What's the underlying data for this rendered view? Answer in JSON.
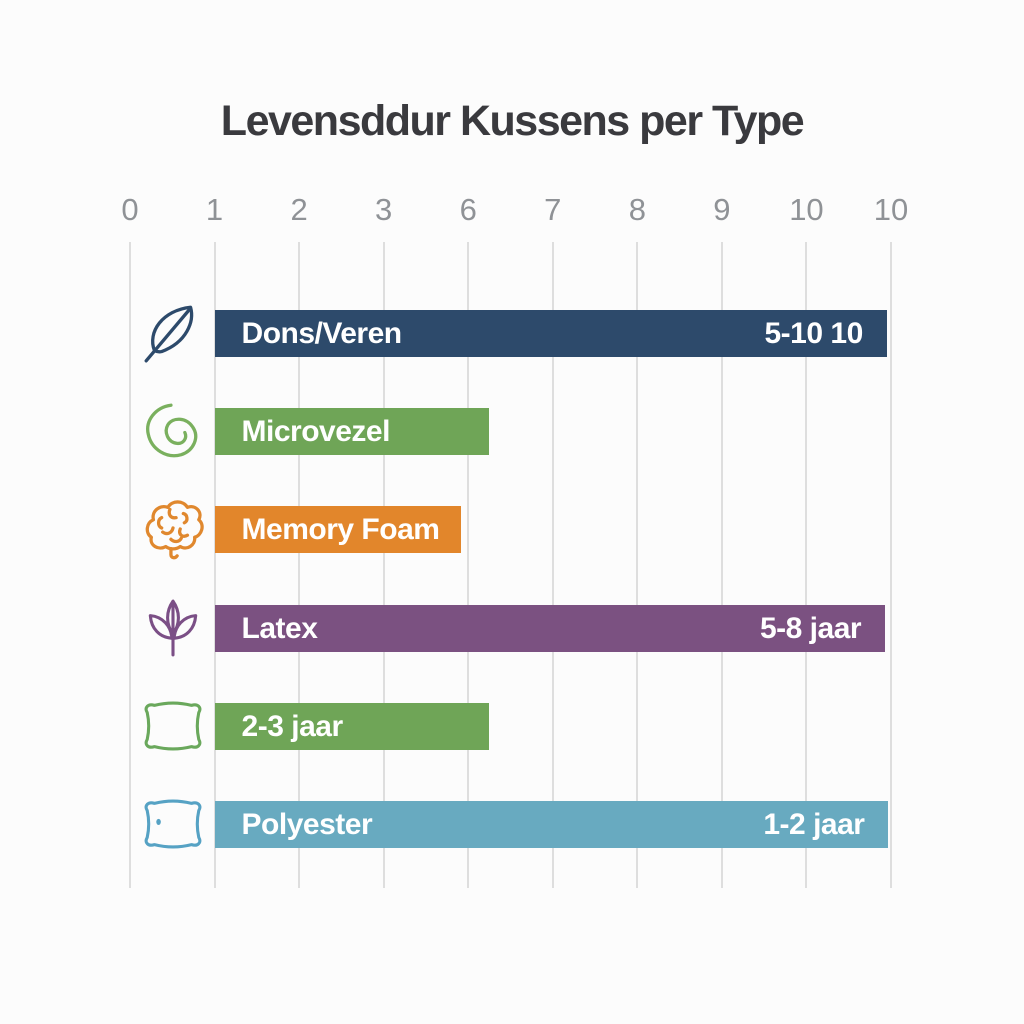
{
  "page": {
    "background": "#fcfcfc"
  },
  "chart_data": {
    "type": "bar",
    "orientation": "horizontal",
    "title": "Levensddur Kussens per Type",
    "x_tick_labels": [
      "0",
      "1",
      "2",
      "3",
      "6",
      "7",
      "8",
      "9",
      "10",
      "10"
    ],
    "grid": true,
    "legend": false,
    "rows": [
      {
        "label": "Dons/Veren",
        "value_label": "5-10 10",
        "icon": "feather-icon",
        "color": "#2d4a6b",
        "bar_start_tick": 1,
        "bar_end_tick": 8.95
      },
      {
        "label": "Microvezel",
        "value_label": "",
        "icon": "swirl-icon",
        "color": "#6fa557",
        "bar_start_tick": 1,
        "bar_end_tick": 4.24
      },
      {
        "label": "Memory Foam",
        "value_label": "",
        "icon": "brain-icon",
        "color": "#e2862b",
        "bar_start_tick": 1,
        "bar_end_tick": 3.92
      },
      {
        "label": "Latex",
        "value_label": "5-8 jaar",
        "icon": "leaf-icon",
        "color": "#7b5181",
        "bar_start_tick": 1,
        "bar_end_tick": 8.93
      },
      {
        "label": "2-3 jaar",
        "value_label": "",
        "icon": "pillow-icon",
        "color": "#6fa557",
        "bar_start_tick": 1,
        "bar_end_tick": 4.24
      },
      {
        "label": "Polyester",
        "value_label": "1-2 jaar",
        "icon": "pillow-icon",
        "color": "#68aac0",
        "bar_start_tick": 1,
        "bar_end_tick": 8.97
      }
    ],
    "colors": {
      "title": "#3a3a3e",
      "tick": "#8f9296",
      "gridline": "#dedede",
      "bar_text": "#ffffff",
      "navy": "#2d4a6b",
      "green": "#6fa557",
      "orange": "#e2862b",
      "purple": "#7b5181",
      "teal": "#68aac0"
    }
  }
}
